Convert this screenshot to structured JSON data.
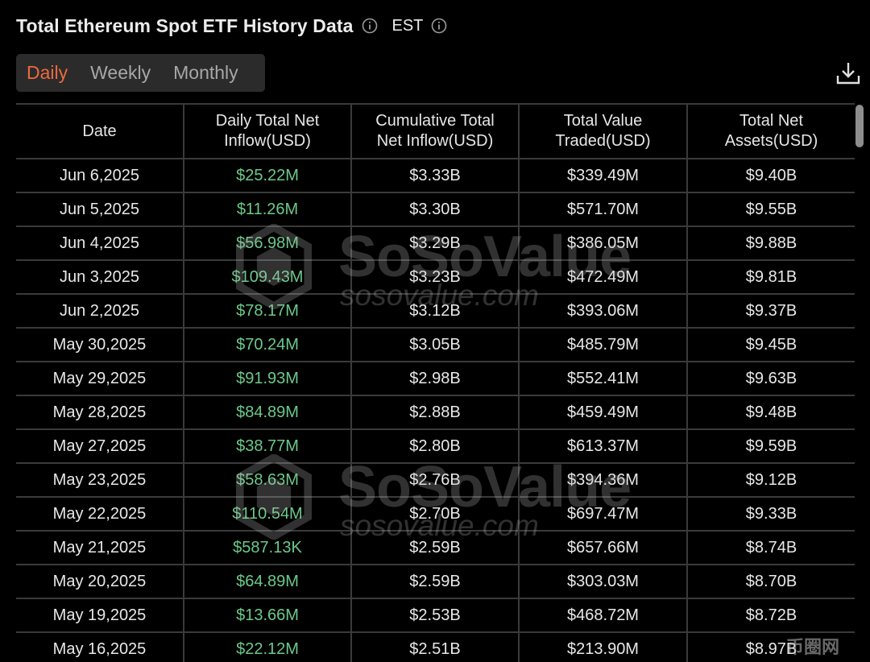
{
  "header": {
    "title": "Total Ethereum Spot ETF History Data",
    "timezone": "EST"
  },
  "tabs": [
    {
      "label": "Daily",
      "active": true
    },
    {
      "label": "Weekly",
      "active": false
    },
    {
      "label": "Monthly",
      "active": false
    }
  ],
  "accent_color": "#ec6a3f",
  "positive_color": "#6cc98a",
  "table": {
    "columns": [
      [
        "Date"
      ],
      [
        "Daily Total Net",
        "Inflow(USD)"
      ],
      [
        "Cumulative Total",
        "Net Inflow(USD)"
      ],
      [
        "Total Value",
        "Traded(USD)"
      ],
      [
        "Total Net",
        "Assets(USD)"
      ]
    ],
    "rows": [
      [
        "Jun 6,2025",
        "$25.22M",
        "$3.33B",
        "$339.49M",
        "$9.40B"
      ],
      [
        "Jun 5,2025",
        "$11.26M",
        "$3.30B",
        "$571.70M",
        "$9.55B"
      ],
      [
        "Jun 4,2025",
        "$56.98M",
        "$3.29B",
        "$386.05M",
        "$9.88B"
      ],
      [
        "Jun 3,2025",
        "$109.43M",
        "$3.23B",
        "$472.49M",
        "$9.81B"
      ],
      [
        "Jun 2,2025",
        "$78.17M",
        "$3.12B",
        "$393.06M",
        "$9.37B"
      ],
      [
        "May 30,2025",
        "$70.24M",
        "$3.05B",
        "$485.79M",
        "$9.45B"
      ],
      [
        "May 29,2025",
        "$91.93M",
        "$2.98B",
        "$552.41M",
        "$9.63B"
      ],
      [
        "May 28,2025",
        "$84.89M",
        "$2.88B",
        "$459.49M",
        "$9.48B"
      ],
      [
        "May 27,2025",
        "$38.77M",
        "$2.80B",
        "$613.37M",
        "$9.59B"
      ],
      [
        "May 23,2025",
        "$58.63M",
        "$2.76B",
        "$394.36M",
        "$9.12B"
      ],
      [
        "May 22,2025",
        "$110.54M",
        "$2.70B",
        "$697.47M",
        "$9.33B"
      ],
      [
        "May 21,2025",
        "$587.13K",
        "$2.59B",
        "$657.66M",
        "$8.74B"
      ],
      [
        "May 20,2025",
        "$64.89M",
        "$2.59B",
        "$303.03M",
        "$8.70B"
      ],
      [
        "May 19,2025",
        "$13.66M",
        "$2.53B",
        "$468.72M",
        "$8.72B"
      ],
      [
        "May 16,2025",
        "$22.12M",
        "$2.51B",
        "$213.90M",
        "$8.97B"
      ]
    ]
  },
  "watermark": {
    "name": "SoSoValue",
    "url": "sosovalue.com"
  },
  "corner_watermark": {
    "text": "币圈网"
  },
  "icons": {
    "info": "info-circle-icon",
    "download": "download-icon",
    "watermark_logo": "sosovalue-logo-icon"
  }
}
